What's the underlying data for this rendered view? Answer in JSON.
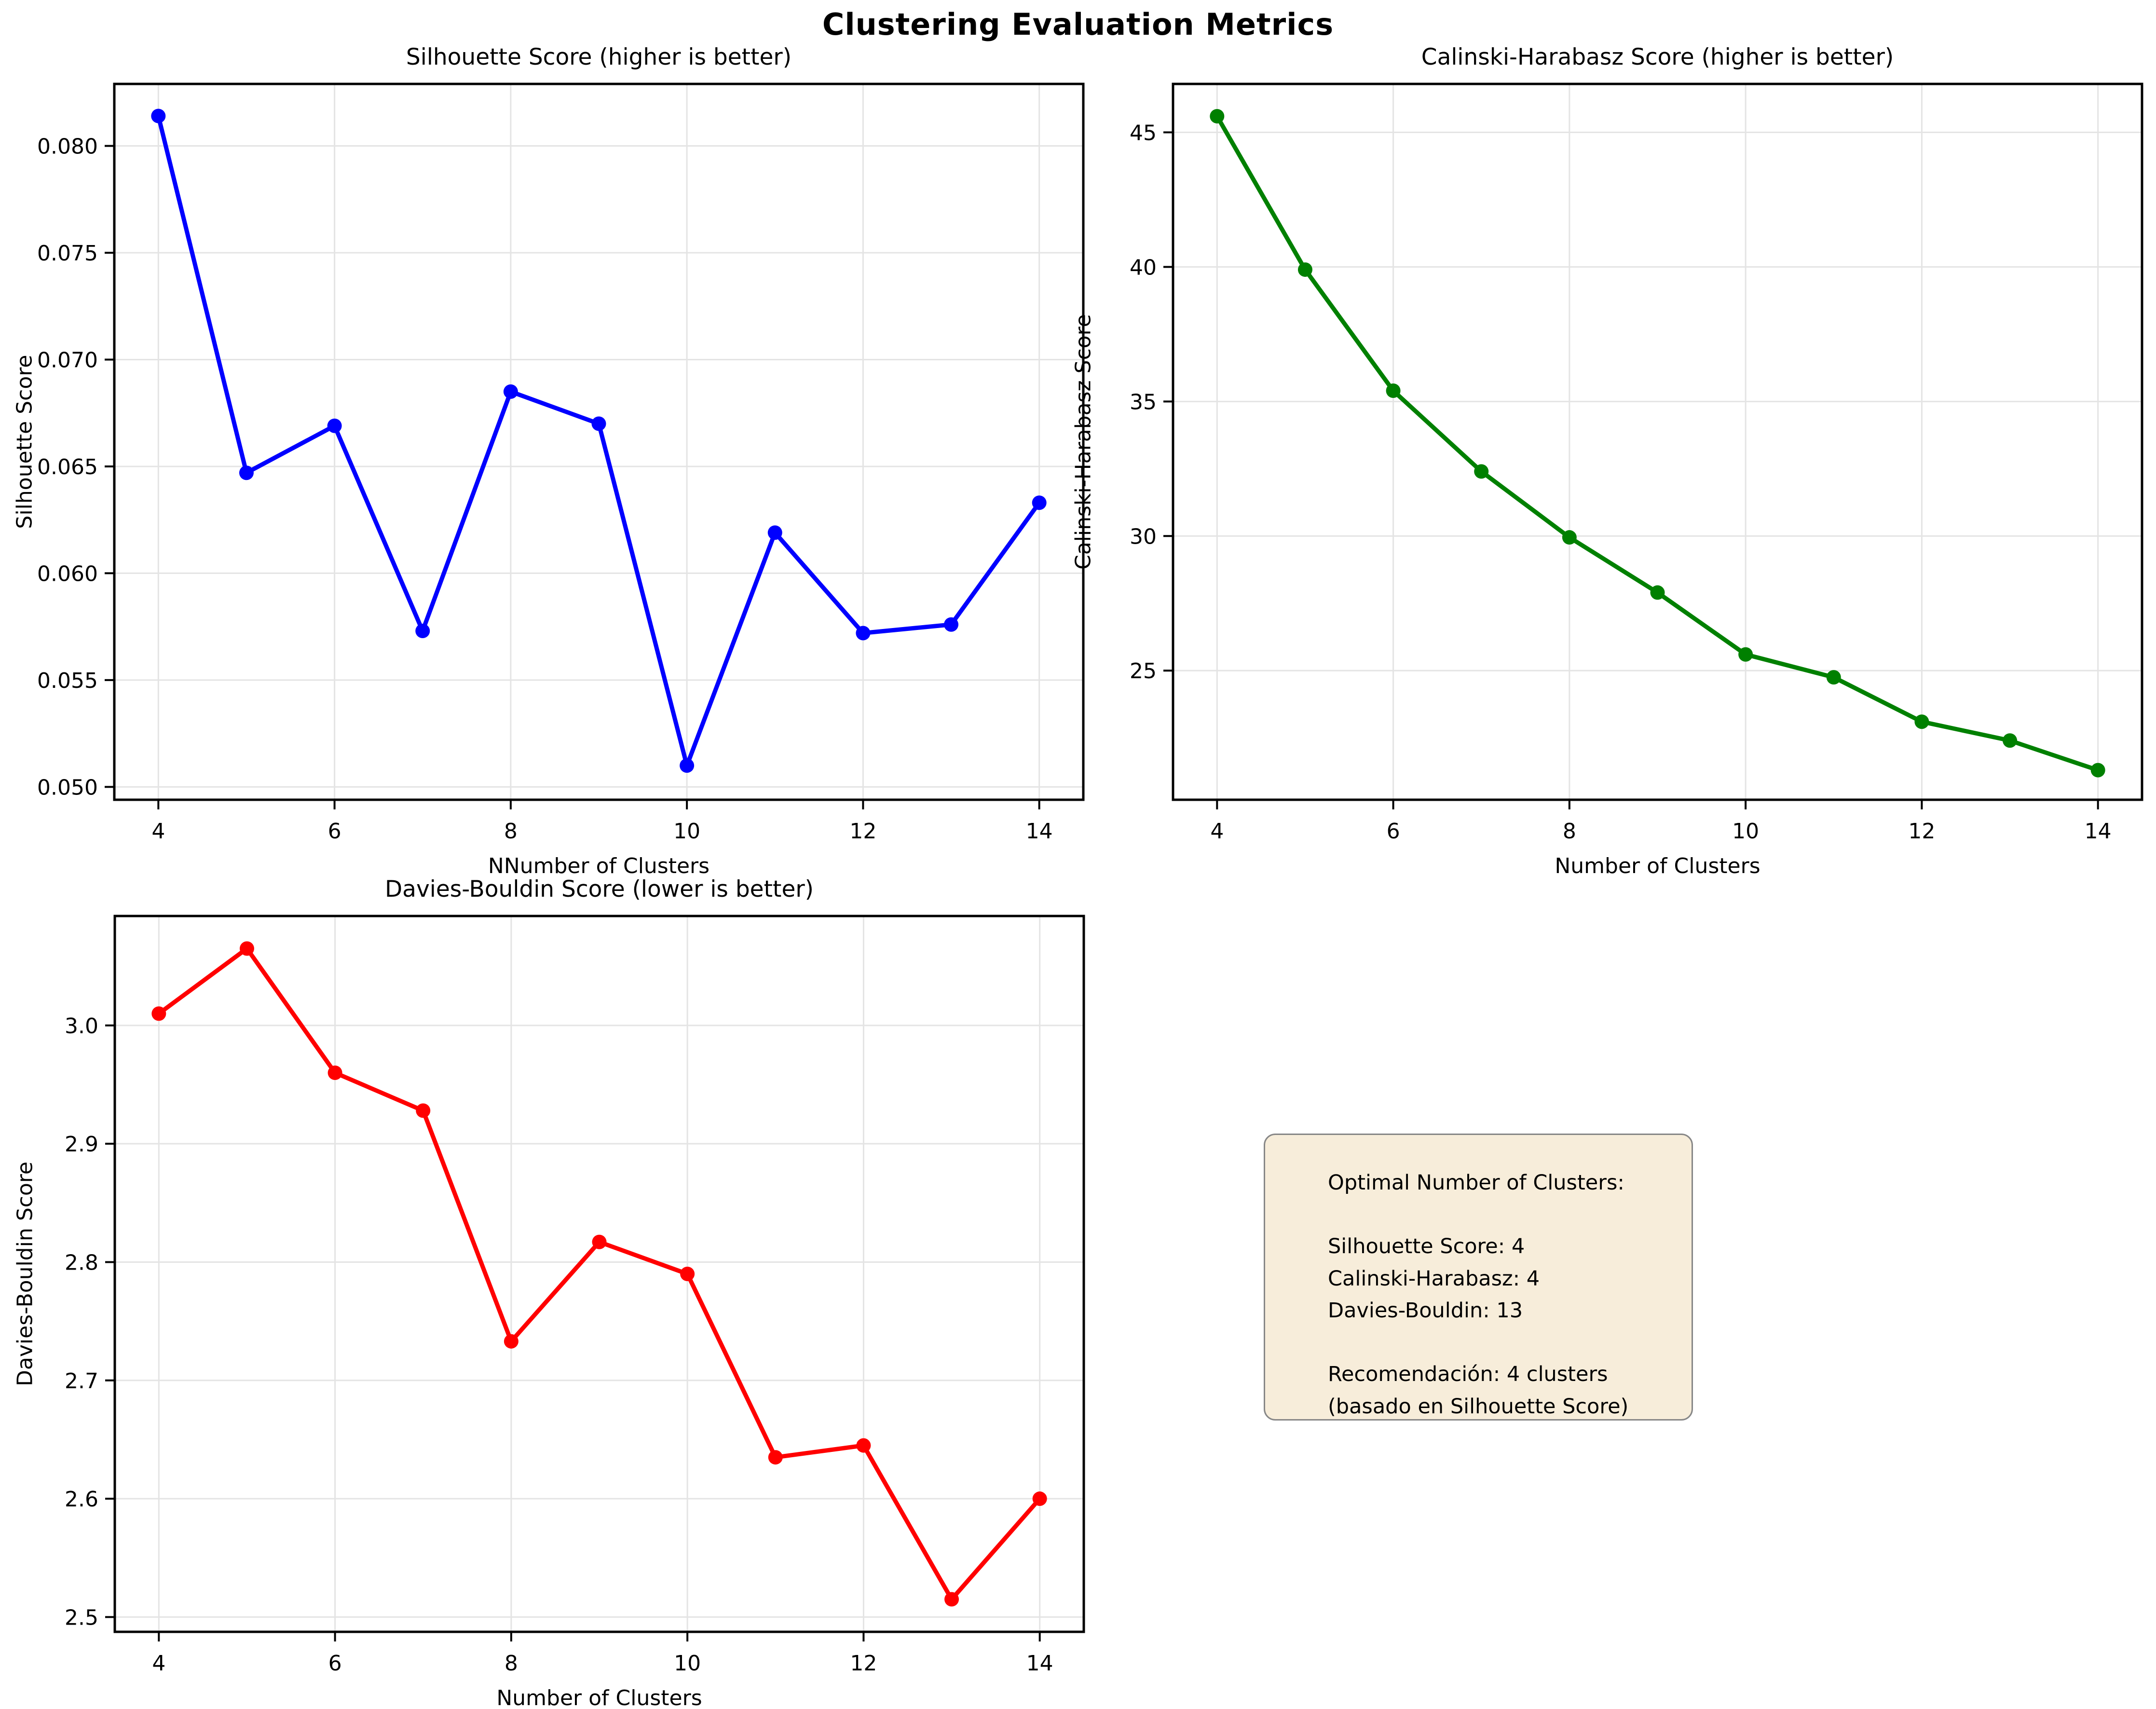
{
  "suptitle": "Clustering Evaluation Metrics",
  "annotation": {
    "lines": [
      "Optimal Number of Clusters:",
      "",
      "Silhouette Score: 4",
      "Calinski-Harabasz: 4",
      "Davies-Bouldin: 13",
      "",
      "Recomendación: 4 clusters",
      "(basado en Silhouette Score)"
    ],
    "background_color": "#f7edda",
    "border_color": "#878787"
  },
  "chart_data": [
    {
      "type": "line",
      "title": "Silhouette Score (higher is better)",
      "xlabel": "NNumber of Clusters",
      "ylabel": "Silhouette Score",
      "color": "#0000ff",
      "grid": true,
      "x": [
        4,
        5,
        6,
        7,
        8,
        9,
        10,
        11,
        12,
        13,
        14
      ],
      "values": [
        0.0814,
        0.0647,
        0.0669,
        0.0573,
        0.0685,
        0.067,
        0.051,
        0.0619,
        0.0572,
        0.0576,
        0.0633
      ],
      "xlim": [
        3.5,
        14.5
      ],
      "ylim": [
        0.0494,
        0.0829
      ],
      "xticks": [
        4,
        6,
        8,
        10,
        12,
        14
      ],
      "xtick_labels": [
        "4",
        "6",
        "8",
        "10",
        "12",
        "14"
      ],
      "yticks": [
        0.05,
        0.055,
        0.06,
        0.065,
        0.07,
        0.075,
        0.08
      ],
      "ytick_labels": [
        "0.050",
        "0.055",
        "0.060",
        "0.065",
        "0.070",
        "0.075",
        "0.080"
      ]
    },
    {
      "type": "line",
      "title": "Calinski-Harabasz Score (higher is better)",
      "xlabel": "Number of Clusters",
      "ylabel": "Calinski-Harabasz Score",
      "color": "#008000",
      "grid": true,
      "x": [
        4,
        5,
        6,
        7,
        8,
        9,
        10,
        11,
        12,
        13,
        14
      ],
      "values": [
        45.6,
        39.9,
        35.4,
        32.4,
        29.95,
        27.9,
        25.6,
        24.75,
        23.1,
        22.4,
        21.3
      ],
      "xlim": [
        3.5,
        14.5
      ],
      "ylim": [
        20.2,
        46.8
      ],
      "xticks": [
        4,
        6,
        8,
        10,
        12,
        14
      ],
      "xtick_labels": [
        "4",
        "6",
        "8",
        "10",
        "12",
        "14"
      ],
      "yticks": [
        25,
        30,
        35,
        40,
        45
      ],
      "ytick_labels": [
        "25",
        "30",
        "35",
        "40",
        "45"
      ]
    },
    {
      "type": "line",
      "title": "Davies-Bouldin Score (lower is better)",
      "xlabel": "Number of Clusters",
      "ylabel": "Davies-Bouldin Score",
      "color": "#ff0000",
      "grid": true,
      "x": [
        4,
        5,
        6,
        7,
        8,
        9,
        10,
        11,
        12,
        13,
        14
      ],
      "values": [
        3.01,
        3.065,
        2.96,
        2.928,
        2.733,
        2.817,
        2.79,
        2.635,
        2.645,
        2.515,
        2.6
      ],
      "xlim": [
        3.5,
        14.5
      ],
      "ylim": [
        2.4875,
        3.0925
      ],
      "xticks": [
        4,
        6,
        8,
        10,
        12,
        14
      ],
      "xtick_labels": [
        "4",
        "6",
        "8",
        "10",
        "12",
        "14"
      ],
      "yticks": [
        2.5,
        2.6,
        2.7,
        2.8,
        2.9,
        3.0
      ],
      "ytick_labels": [
        "2.5",
        "2.6",
        "2.7",
        "2.8",
        "2.9",
        "3.0"
      ]
    }
  ],
  "style": {
    "grid_color": "#e4e4e4",
    "spine_color": "#000000",
    "tick_color": "#000000"
  }
}
